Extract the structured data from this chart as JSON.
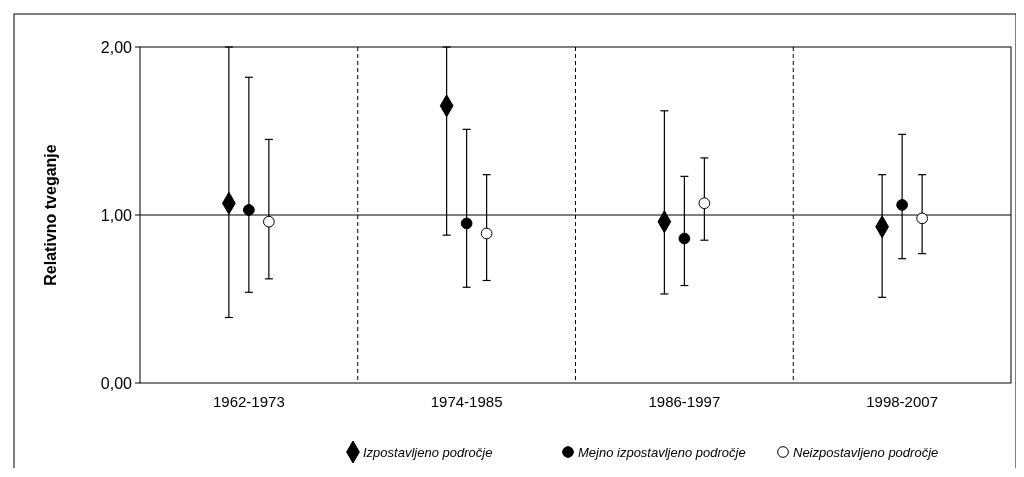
{
  "chart_data": {
    "type": "scatter",
    "ylabel": "Relativno tveganje",
    "categories": [
      "1962-1973",
      "1974-1985",
      "1986-1997",
      "1998-2007"
    ],
    "ylim": [
      0,
      2
    ],
    "yticks": [
      {
        "value": 0,
        "label": "0,00"
      },
      {
        "value": 1,
        "label": "1,00"
      },
      {
        "value": 2,
        "label": "2,00"
      }
    ],
    "grid": "x",
    "legend": "bottom",
    "ref_lines": [
      {
        "axis": "y",
        "value": 1,
        "color": "#000000",
        "line_style": "solid"
      }
    ],
    "series": [
      {
        "name": "Izpostavljeno področje",
        "color": "#000000",
        "marker": "diamond",
        "values": [
          1.07,
          1.65,
          0.96,
          0.93
        ],
        "errors": [
          [
            0.39,
            2.0
          ],
          [
            0.88,
            2.0
          ],
          [
            0.53,
            1.62
          ],
          [
            0.51,
            1.24
          ]
        ]
      },
      {
        "name": "Mejno izpostavljeno področje",
        "color": "#000000",
        "marker": "circle",
        "values": [
          1.03,
          0.95,
          0.86,
          1.06
        ],
        "errors": [
          [
            0.54,
            1.82
          ],
          [
            0.57,
            1.51
          ],
          [
            0.58,
            1.23
          ],
          [
            0.74,
            1.48
          ]
        ]
      },
      {
        "name": "Neizpostavljeno področje",
        "color": "#ffffff",
        "marker": "circle",
        "values": [
          0.96,
          0.89,
          1.07,
          0.98
        ],
        "errors": [
          [
            0.62,
            1.45
          ],
          [
            0.61,
            1.24
          ],
          [
            0.85,
            1.34
          ],
          [
            0.77,
            1.24
          ]
        ]
      }
    ]
  }
}
